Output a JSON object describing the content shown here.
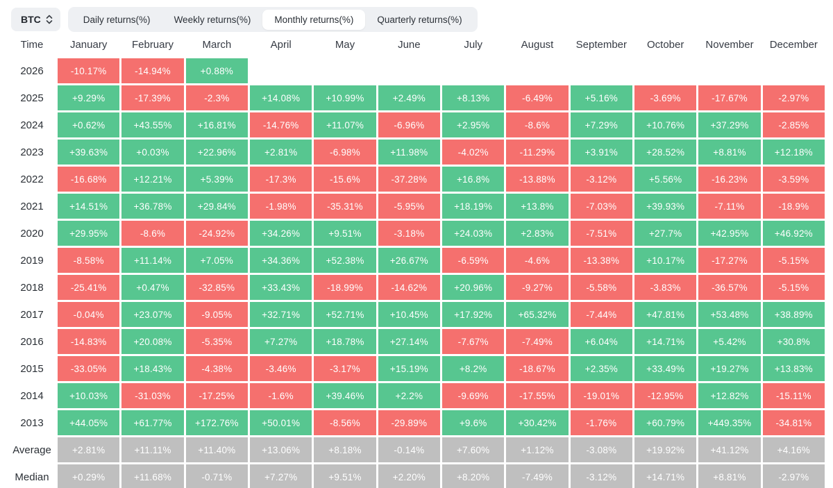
{
  "toolbar": {
    "symbol": "BTC",
    "tabs": [
      {
        "id": "daily",
        "label": "Daily returns(%)",
        "active": false
      },
      {
        "id": "weekly",
        "label": "Weekly returns(%)",
        "active": false
      },
      {
        "id": "monthly",
        "label": "Monthly returns(%)",
        "active": true
      },
      {
        "id": "quarterly",
        "label": "Quarterly returns(%)",
        "active": false
      }
    ]
  },
  "colors": {
    "positive": "#57c690",
    "negative": "#f5706e",
    "neutral": "#bfbfbf"
  },
  "table": {
    "time_header": "Time",
    "months": [
      "January",
      "February",
      "March",
      "April",
      "May",
      "June",
      "July",
      "August",
      "September",
      "October",
      "November",
      "December"
    ],
    "rows": [
      {
        "label": "2026",
        "kind": "year",
        "values": [
          "-10.17%",
          "-14.94%",
          "+0.88%",
          "",
          "",
          "",
          "",
          "",
          "",
          "",
          "",
          ""
        ]
      },
      {
        "label": "2025",
        "kind": "year",
        "values": [
          "+9.29%",
          "-17.39%",
          "-2.3%",
          "+14.08%",
          "+10.99%",
          "+2.49%",
          "+8.13%",
          "-6.49%",
          "+5.16%",
          "-3.69%",
          "-17.67%",
          "-2.97%"
        ]
      },
      {
        "label": "2024",
        "kind": "year",
        "values": [
          "+0.62%",
          "+43.55%",
          "+16.81%",
          "-14.76%",
          "+11.07%",
          "-6.96%",
          "+2.95%",
          "-8.6%",
          "+7.29%",
          "+10.76%",
          "+37.29%",
          "-2.85%"
        ]
      },
      {
        "label": "2023",
        "kind": "year",
        "values": [
          "+39.63%",
          "+0.03%",
          "+22.96%",
          "+2.81%",
          "-6.98%",
          "+11.98%",
          "-4.02%",
          "-11.29%",
          "+3.91%",
          "+28.52%",
          "+8.81%",
          "+12.18%"
        ]
      },
      {
        "label": "2022",
        "kind": "year",
        "values": [
          "-16.68%",
          "+12.21%",
          "+5.39%",
          "-17.3%",
          "-15.6%",
          "-37.28%",
          "+16.8%",
          "-13.88%",
          "-3.12%",
          "+5.56%",
          "-16.23%",
          "-3.59%"
        ]
      },
      {
        "label": "2021",
        "kind": "year",
        "values": [
          "+14.51%",
          "+36.78%",
          "+29.84%",
          "-1.98%",
          "-35.31%",
          "-5.95%",
          "+18.19%",
          "+13.8%",
          "-7.03%",
          "+39.93%",
          "-7.11%",
          "-18.9%"
        ]
      },
      {
        "label": "2020",
        "kind": "year",
        "values": [
          "+29.95%",
          "-8.6%",
          "-24.92%",
          "+34.26%",
          "+9.51%",
          "-3.18%",
          "+24.03%",
          "+2.83%",
          "-7.51%",
          "+27.7%",
          "+42.95%",
          "+46.92%"
        ]
      },
      {
        "label": "2019",
        "kind": "year",
        "values": [
          "-8.58%",
          "+11.14%",
          "+7.05%",
          "+34.36%",
          "+52.38%",
          "+26.67%",
          "-6.59%",
          "-4.6%",
          "-13.38%",
          "+10.17%",
          "-17.27%",
          "-5.15%"
        ]
      },
      {
        "label": "2018",
        "kind": "year",
        "values": [
          "-25.41%",
          "+0.47%",
          "-32.85%",
          "+33.43%",
          "-18.99%",
          "-14.62%",
          "+20.96%",
          "-9.27%",
          "-5.58%",
          "-3.83%",
          "-36.57%",
          "-5.15%"
        ]
      },
      {
        "label": "2017",
        "kind": "year",
        "values": [
          "-0.04%",
          "+23.07%",
          "-9.05%",
          "+32.71%",
          "+52.71%",
          "+10.45%",
          "+17.92%",
          "+65.32%",
          "-7.44%",
          "+47.81%",
          "+53.48%",
          "+38.89%"
        ]
      },
      {
        "label": "2016",
        "kind": "year",
        "values": [
          "-14.83%",
          "+20.08%",
          "-5.35%",
          "+7.27%",
          "+18.78%",
          "+27.14%",
          "-7.67%",
          "-7.49%",
          "+6.04%",
          "+14.71%",
          "+5.42%",
          "+30.8%"
        ]
      },
      {
        "label": "2015",
        "kind": "year",
        "values": [
          "-33.05%",
          "+18.43%",
          "-4.38%",
          "-3.46%",
          "-3.17%",
          "+15.19%",
          "+8.2%",
          "-18.67%",
          "+2.35%",
          "+33.49%",
          "+19.27%",
          "+13.83%"
        ]
      },
      {
        "label": "2014",
        "kind": "year",
        "values": [
          "+10.03%",
          "-31.03%",
          "-17.25%",
          "-1.6%",
          "+39.46%",
          "+2.2%",
          "-9.69%",
          "-17.55%",
          "-19.01%",
          "-12.95%",
          "+12.82%",
          "-15.11%"
        ]
      },
      {
        "label": "2013",
        "kind": "year",
        "values": [
          "+44.05%",
          "+61.77%",
          "+172.76%",
          "+50.01%",
          "-8.56%",
          "-29.89%",
          "+9.6%",
          "+30.42%",
          "-1.76%",
          "+60.79%",
          "+449.35%",
          "-34.81%"
        ]
      },
      {
        "label": "Average",
        "kind": "summary",
        "values": [
          "+2.81%",
          "+11.11%",
          "+11.40%",
          "+13.06%",
          "+8.18%",
          "-0.14%",
          "+7.60%",
          "+1.12%",
          "-3.08%",
          "+19.92%",
          "+41.12%",
          "+4.16%"
        ]
      },
      {
        "label": "Median",
        "kind": "summary",
        "values": [
          "+0.29%",
          "+11.68%",
          "-0.71%",
          "+7.27%",
          "+9.51%",
          "+2.20%",
          "+8.20%",
          "-7.49%",
          "-3.12%",
          "+14.71%",
          "+8.81%",
          "-2.97%"
        ]
      }
    ]
  }
}
